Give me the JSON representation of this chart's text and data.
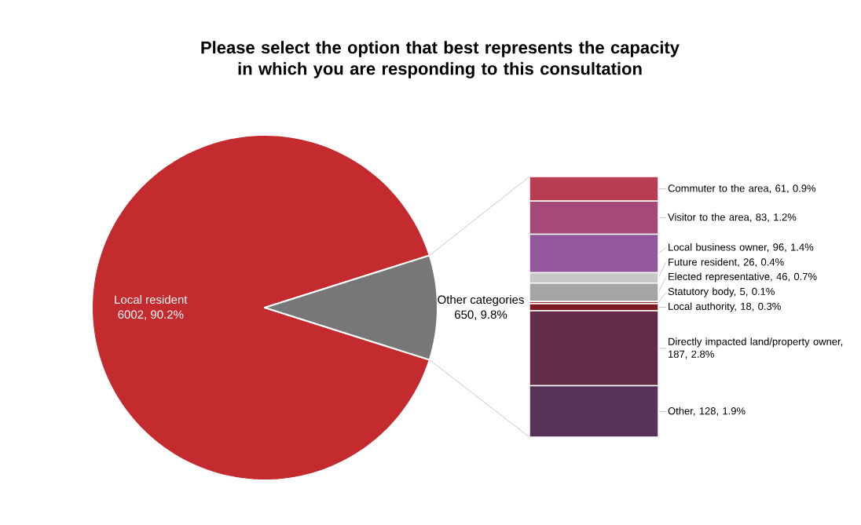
{
  "chart_data": [
    {
      "type": "pie",
      "title": "Please select the option that best represents the capacity in which you are responding to this consultation",
      "categories": [
        "Local resident",
        "Other categories"
      ],
      "values": [
        6002,
        650
      ],
      "value_labels": [
        "6002, 90.2%",
        "650, 9.8%"
      ],
      "colors": [
        "#c32b2f",
        "#777777"
      ]
    },
    {
      "type": "bar",
      "stacked": true,
      "categories": [
        null
      ],
      "series": [
        {
          "color": "#583359",
          "values": [
            128
          ],
          "value_labels": [
            "Other, 128, 1.9%"
          ]
        },
        {
          "color": "#632d48",
          "values": [
            187
          ],
          "value_labels": [
            "Directly impacted land/property owner, 187, 2.8%"
          ]
        },
        {
          "color": "#7b1c20",
          "values": [
            18
          ],
          "value_labels": [
            "Local authority, 18, 0.3%"
          ]
        },
        {
          "color": "#9e2a2f",
          "values": [
            5
          ],
          "value_labels": [
            "Statutory body, 5, 0.1%"
          ]
        },
        {
          "color": "#a5a5a5",
          "values": [
            46
          ],
          "value_labels": [
            "Elected representative, 46, 0.7%"
          ]
        },
        {
          "color": "#c8c8c8",
          "values": [
            26
          ],
          "value_labels": [
            "Future resident, 26, 0.4%"
          ]
        },
        {
          "color": "#94569c",
          "values": [
            96
          ],
          "value_labels": [
            "Local business owner, 96, 1.4%"
          ]
        },
        {
          "color": "#a54a78",
          "values": [
            83
          ],
          "value_labels": [
            "Visitor to the area, 83, 1.2%"
          ]
        },
        {
          "color": "#b83c52",
          "values": [
            61
          ],
          "value_labels": [
            "Commuter to the area, 61, 0.9%"
          ]
        }
      ]
    }
  ]
}
